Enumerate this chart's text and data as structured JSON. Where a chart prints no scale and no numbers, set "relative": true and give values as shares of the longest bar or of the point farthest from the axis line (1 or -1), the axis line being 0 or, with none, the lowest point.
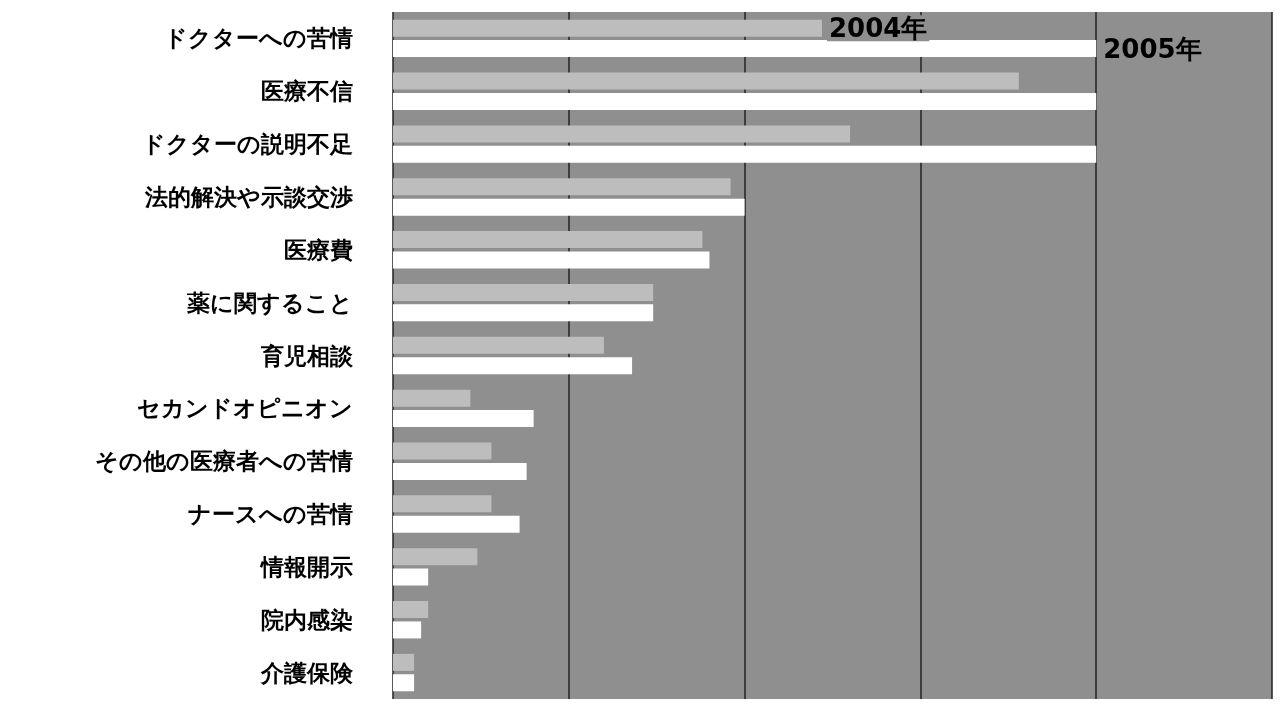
{
  "chart_data": {
    "type": "bar",
    "orientation": "horizontal",
    "relative": true,
    "grid": "x",
    "legend": false,
    "categories": [
      "ドクターへの苦情",
      "医療不信",
      "ドクターの説明不足",
      "法的解決や示談交渉",
      "医療費",
      "薬に関すること",
      "育児相談",
      "セカンドオピニオン",
      "その他の医療者への苦情",
      "ナースへの苦情",
      "情報開示",
      "院内感染",
      "介護保険"
    ],
    "series": [
      {
        "name": "2004年",
        "color": "#bdbdbd",
        "values": [
          0.61,
          0.89,
          0.65,
          0.48,
          0.44,
          0.37,
          0.3,
          0.11,
          0.14,
          0.14,
          0.12,
          0.05,
          0.03
        ]
      },
      {
        "name": "2005年",
        "color": "#ffffff",
        "values": [
          1,
          1,
          1,
          0.5,
          0.45,
          0.37,
          0.34,
          0.2,
          0.19,
          0.18,
          0.05,
          0.04,
          0.03
        ]
      }
    ]
  }
}
